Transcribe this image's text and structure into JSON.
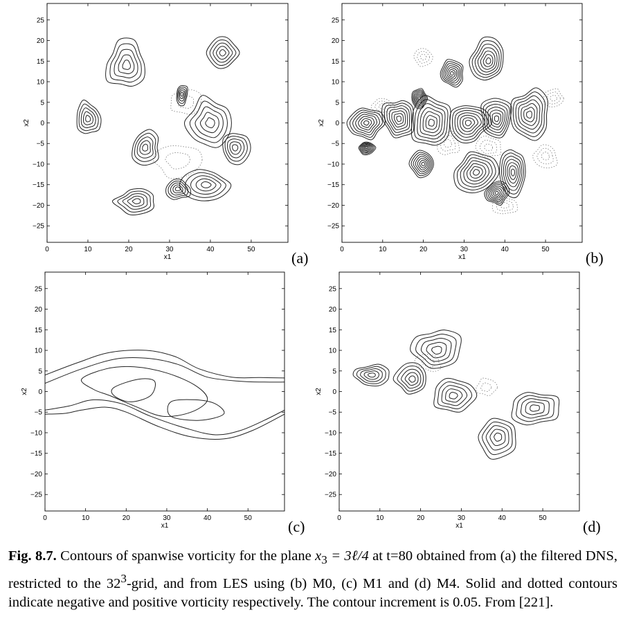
{
  "chart_data": [
    {
      "type": "contour",
      "panel_label": "(a)",
      "xlabel": "x1",
      "ylabel": "x2",
      "xlim": [
        0,
        59
      ],
      "ylim": [
        -29,
        29
      ],
      "xticks": [
        0,
        10,
        20,
        30,
        40,
        50
      ],
      "yticks": [
        -25,
        -20,
        -15,
        -10,
        -5,
        0,
        5,
        10,
        15,
        20,
        25
      ],
      "solid_levels": 5,
      "dotted_levels": 2,
      "solid_blobs": [
        {
          "cx": 19.5,
          "cy": 14,
          "rx": 5,
          "ry": 5.5
        },
        {
          "cx": 10,
          "cy": 1,
          "rx": 3,
          "ry": 4
        },
        {
          "cx": 40,
          "cy": 0,
          "rx": 5.5,
          "ry": 6
        },
        {
          "cx": 46,
          "cy": -6,
          "rx": 3.5,
          "ry": 4
        },
        {
          "cx": 43,
          "cy": 17,
          "rx": 3.5,
          "ry": 4
        },
        {
          "cx": 39,
          "cy": -15,
          "rx": 5.5,
          "ry": 3.5
        },
        {
          "cx": 32,
          "cy": -16,
          "rx": 3,
          "ry": 2.5
        },
        {
          "cx": 22,
          "cy": -19,
          "rx": 5,
          "ry": 3
        },
        {
          "cx": 24,
          "cy": -6,
          "rx": 3.5,
          "ry": 4
        },
        {
          "cx": 33,
          "cy": 7,
          "rx": 1.5,
          "ry": 2.5
        }
      ],
      "dotted_blobs": [
        {
          "cx": 32,
          "cy": -9,
          "rx": 6,
          "ry": 4
        },
        {
          "cx": 34,
          "cy": 5,
          "rx": 4,
          "ry": 3
        }
      ]
    },
    {
      "type": "contour",
      "panel_label": "(b)",
      "xlabel": "x1",
      "ylabel": "x2",
      "xlim": [
        0,
        59
      ],
      "ylim": [
        -29,
        29
      ],
      "xticks": [
        0,
        10,
        20,
        30,
        40,
        50
      ],
      "yticks": [
        -25,
        -20,
        -15,
        -10,
        -5,
        0,
        5,
        10,
        15,
        20,
        25
      ],
      "solid_levels": 7,
      "dotted_levels": 3,
      "solid_blobs": [
        {
          "cx": 6,
          "cy": 0,
          "rx": 4,
          "ry": 4
        },
        {
          "cx": 14,
          "cy": 1,
          "rx": 4,
          "ry": 5
        },
        {
          "cx": 22,
          "cy": 0,
          "rx": 5,
          "ry": 6
        },
        {
          "cx": 31,
          "cy": 0,
          "rx": 5,
          "ry": 5
        },
        {
          "cx": 38,
          "cy": 1,
          "rx": 4,
          "ry": 5
        },
        {
          "cx": 46,
          "cy": 2,
          "rx": 5,
          "ry": 6
        },
        {
          "cx": 36,
          "cy": 15,
          "rx": 4,
          "ry": 5
        },
        {
          "cx": 27,
          "cy": 12,
          "rx": 3,
          "ry": 3
        },
        {
          "cx": 33,
          "cy": -12,
          "rx": 5,
          "ry": 5
        },
        {
          "cx": 42,
          "cy": -12,
          "rx": 3,
          "ry": 6
        },
        {
          "cx": 20,
          "cy": -10,
          "rx": 3,
          "ry": 3
        },
        {
          "cx": 6,
          "cy": -6,
          "rx": 2,
          "ry": 1.5
        },
        {
          "cx": 19,
          "cy": 6,
          "rx": 2,
          "ry": 2.5
        },
        {
          "cx": 38,
          "cy": -17,
          "rx": 3,
          "ry": 3
        }
      ],
      "dotted_blobs": [
        {
          "cx": 10,
          "cy": 4,
          "rx": 3,
          "ry": 2
        },
        {
          "cx": 26,
          "cy": -5,
          "rx": 3,
          "ry": 3
        },
        {
          "cx": 36,
          "cy": -6,
          "rx": 3,
          "ry": 2.5
        },
        {
          "cx": 50,
          "cy": -8,
          "rx": 3,
          "ry": 3
        },
        {
          "cx": 40,
          "cy": -20,
          "rx": 3,
          "ry": 2
        },
        {
          "cx": 20,
          "cy": 16,
          "rx": 2,
          "ry": 2
        },
        {
          "cx": 52,
          "cy": 6,
          "rx": 2.5,
          "ry": 2
        }
      ]
    },
    {
      "type": "contour",
      "panel_label": "(c)",
      "xlabel": "x1",
      "ylabel": "x2",
      "xlim": [
        0,
        59
      ],
      "ylim": [
        -29,
        29
      ],
      "xticks": [
        0,
        10,
        20,
        30,
        40,
        50
      ],
      "yticks": [
        -25,
        -20,
        -15,
        -10,
        -5,
        0,
        5,
        10,
        15,
        20,
        25
      ],
      "contours": [
        {
          "style": "solid",
          "points": [
            [
              0,
              4
            ],
            [
              8,
              7
            ],
            [
              16,
              9.5
            ],
            [
              25,
              10
            ],
            [
              32,
              8.5
            ],
            [
              38,
              5.5
            ],
            [
              46,
              3.5
            ],
            [
              53,
              3.4
            ],
            [
              59,
              3.3
            ]
          ]
        },
        {
          "style": "solid",
          "points": [
            [
              0,
              2
            ],
            [
              9,
              5.5
            ],
            [
              18,
              8
            ],
            [
              26,
              8
            ],
            [
              33,
              6.5
            ],
            [
              40,
              3.5
            ],
            [
              48,
              2.5
            ],
            [
              54,
              2.3
            ],
            [
              59,
              2.3
            ]
          ]
        },
        {
          "style": "solid",
          "points": [
            [
              0,
              -4.5
            ],
            [
              6,
              -3.5
            ],
            [
              12,
              -2
            ],
            [
              19,
              -3
            ],
            [
              26,
              -6
            ],
            [
              35,
              -9
            ],
            [
              42,
              -10.5
            ],
            [
              48,
              -9.5
            ],
            [
              54,
              -7
            ],
            [
              59,
              -4.5
            ]
          ]
        },
        {
          "style": "solid",
          "points": [
            [
              0,
              -5.5
            ],
            [
              5,
              -5.3
            ],
            [
              9,
              -4.5
            ],
            [
              15,
              -3.8
            ],
            [
              20,
              -5
            ],
            [
              28,
              -8.5
            ],
            [
              36,
              -11
            ],
            [
              44,
              -11.5
            ],
            [
              51,
              -9.5
            ],
            [
              59,
              -5.5
            ]
          ]
        },
        {
          "style": "solid",
          "closed": true,
          "points": [
            [
              9,
              3
            ],
            [
              15,
              5.5
            ],
            [
              22,
              6
            ],
            [
              30,
              4.5
            ],
            [
              37,
              1.5
            ],
            [
              40,
              -2
            ],
            [
              36,
              -5
            ],
            [
              29,
              -6
            ],
            [
              22,
              -3.5
            ],
            [
              16,
              -1
            ],
            [
              12,
              0.5
            ]
          ]
        },
        {
          "style": "solid",
          "closed": true,
          "points": [
            [
              17,
              1
            ],
            [
              23,
              3
            ],
            [
              27,
              2.5
            ],
            [
              26,
              -1
            ],
            [
              21,
              -2.5
            ],
            [
              17,
              -1
            ]
          ]
        },
        {
          "style": "solid",
          "closed": true,
          "points": [
            [
              31,
              -2.5
            ],
            [
              37,
              -2
            ],
            [
              42,
              -3
            ],
            [
              44,
              -5.5
            ],
            [
              38,
              -7
            ],
            [
              31,
              -6
            ]
          ]
        }
      ]
    },
    {
      "type": "contour",
      "panel_label": "(d)",
      "xlabel": "x1",
      "ylabel": "x2",
      "xlim": [
        0,
        59
      ],
      "ylim": [
        -29,
        29
      ],
      "xticks": [
        0,
        10,
        20,
        30,
        40,
        50
      ],
      "yticks": [
        -25,
        -20,
        -15,
        -10,
        -5,
        0,
        5,
        10,
        15,
        20,
        25
      ],
      "solid_levels": 5,
      "dotted_levels": 2,
      "solid_blobs": [
        {
          "cx": 24,
          "cy": 10,
          "rx": 6,
          "ry": 5
        },
        {
          "cx": 18,
          "cy": 3,
          "rx": 4,
          "ry": 4
        },
        {
          "cx": 39,
          "cy": -11,
          "rx": 5,
          "ry": 5
        },
        {
          "cx": 28,
          "cy": -1,
          "rx": 5,
          "ry": 4
        },
        {
          "cx": 48,
          "cy": -4,
          "rx": 6,
          "ry": 4
        },
        {
          "cx": 8,
          "cy": 4,
          "rx": 5,
          "ry": 2.5
        }
      ],
      "dotted_blobs": [
        {
          "cx": 22,
          "cy": 7,
          "rx": 3,
          "ry": 2
        },
        {
          "cx": 36,
          "cy": 1,
          "rx": 2.5,
          "ry": 2
        }
      ]
    }
  ],
  "caption": {
    "fig_label": "Fig. 8.7.",
    "seg1": " Contours of spanwise vorticity for the plane ",
    "math1": "x",
    "math1_sub": "3",
    "math2": " = 3ℓ/4",
    "seg2": " at t=80 obtained from (a) the filtered DNS, restricted to the 32",
    "seg2_sup": "3",
    "seg3": "-grid, and from LES using (b) M0, (c) M1 and (d) M4. Solid and dotted contours indicate negative and positive vorticity respectively. The contour increment is 0.05. From [221]."
  }
}
